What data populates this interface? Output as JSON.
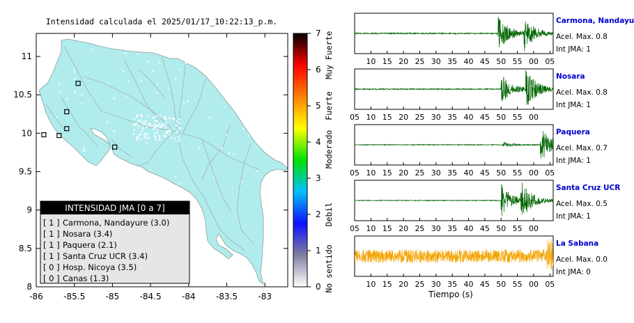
{
  "colors": {
    "land": "#b1eced",
    "station_label": "#0000cc",
    "trace_green": "#006400",
    "trace_orange": "#f4a300",
    "legend_header": "#000000",
    "legend_bg": "#e6e6e6"
  },
  "chart_data": [
    {
      "type": "map",
      "title": "Intensidad calculada el 2025/01/17_10:22:13_p.m.",
      "x_ticks": [
        "-86",
        "-85.5",
        "-85",
        "-84.5",
        "-84",
        "-83.5",
        "-83"
      ],
      "y_ticks": [
        "11",
        "10.5",
        "10",
        "9.5",
        "9",
        "8.5",
        "8"
      ],
      "xlim": [
        -86,
        -82.7
      ],
      "ylim": [
        8,
        11.3
      ],
      "legend": {
        "title": "INTENSIDAD JMA [0 a 7]",
        "entries": [
          {
            "level": "[ 1 ]",
            "name": "Carmona, Nandayure (3.0)"
          },
          {
            "level": "[ 1 ]",
            "name": "Nosara (3.4)"
          },
          {
            "level": "[ 1 ]",
            "name": "Paquera (2.1)"
          },
          {
            "level": "[ 1 ]",
            "name": "Santa Cruz UCR (3.4)"
          },
          {
            "level": "[ 0 ]",
            "name": "Hosp. Nicoya (3.5)"
          },
          {
            "level": "[ 0 ]",
            "name": "Canas (1.3)"
          }
        ]
      },
      "stations": [
        {
          "lon": -85.45,
          "lat": 10.65
        },
        {
          "lon": -85.6,
          "lat": 10.28
        },
        {
          "lon": -85.9,
          "lat": 9.98
        },
        {
          "lon": -85.6,
          "lat": 10.06
        },
        {
          "lon": -85.7,
          "lat": 9.97
        },
        {
          "lon": -84.97,
          "lat": 9.82
        }
      ]
    },
    {
      "type": "colorbar",
      "ticks": [
        "0",
        "1",
        "2",
        "3",
        "4",
        "5",
        "6",
        "7"
      ],
      "range": [
        0,
        7
      ],
      "labels": [
        "No sentido",
        "Debil",
        "Moderado",
        "Fuerte",
        "Muy Fuerte"
      ],
      "stops": [
        "#ffffff",
        "#7f7f9f",
        "#1010ff",
        "#00c0ff",
        "#00e000",
        "#ffff00",
        "#ff8000",
        "#ff0000",
        "#000000"
      ]
    },
    {
      "type": "line",
      "xlabel": "Tiempo (s)",
      "traces": [
        {
          "station": "Carmona, Nandayure",
          "accel": "Acel. Max. 0.8",
          "jma": "Int JMA: 1",
          "color": "#006400",
          "ticks": [
            "10",
            "15",
            "20",
            "25",
            "30",
            "35",
            "40",
            "45",
            "50",
            "55",
            "00",
            "05"
          ],
          "tick_start": 10,
          "events": [
            {
              "t": 49,
              "amp": 1.0
            },
            {
              "t": 57,
              "amp": 0.9
            }
          ],
          "noise": 0.03
        },
        {
          "station": "Nosara",
          "accel": "Acel. Max. 0.8",
          "jma": "Int JMA: 1",
          "color": "#006400",
          "ticks": [
            "05",
            "10",
            "15",
            "20",
            "25",
            "30",
            "35",
            "40",
            "45",
            "50",
            "55",
            "00"
          ],
          "tick_start": 5,
          "events": [
            {
              "t": 50,
              "amp": 0.8
            },
            {
              "t": 57.5,
              "amp": 1.0
            }
          ],
          "noise": 0.03
        },
        {
          "station": "Paquera",
          "accel": "Acel. Max. 0.7",
          "jma": "Int JMA: 1",
          "color": "#006400",
          "ticks": [
            "05",
            "10",
            "15",
            "20",
            "25",
            "30",
            "35",
            "40",
            "45",
            "50",
            "55",
            "00",
            "05"
          ],
          "tick_start": 5,
          "events": [
            {
              "t": 50.5,
              "amp": 0.15
            },
            {
              "t": 62,
              "amp": 1.0
            }
          ],
          "noise": 0.02
        },
        {
          "station": "Santa Cruz UCR",
          "accel": "Acel. Max. 0.5",
          "jma": "Int JMA: 1",
          "color": "#006400",
          "ticks": [
            "05",
            "10",
            "15",
            "20",
            "25",
            "30",
            "35",
            "40",
            "45",
            "50",
            "55",
            "00"
          ],
          "tick_start": 5,
          "events": [
            {
              "t": 50,
              "amp": 0.9
            },
            {
              "t": 56,
              "amp": 1.0
            }
          ],
          "noise": 0.02
        },
        {
          "station": "La Sabana",
          "accel": "Acel. Max. 0.0",
          "jma": "Int JMA: 0",
          "color": "#f4a300",
          "ticks": [
            "10",
            "15",
            "20",
            "25",
            "30",
            "35",
            "40",
            "45",
            "50",
            "55",
            "00",
            "05"
          ],
          "tick_start": 10,
          "events": [
            {
              "t": 64,
              "amp": 1.0
            }
          ],
          "noise": 0.35
        }
      ]
    }
  ]
}
